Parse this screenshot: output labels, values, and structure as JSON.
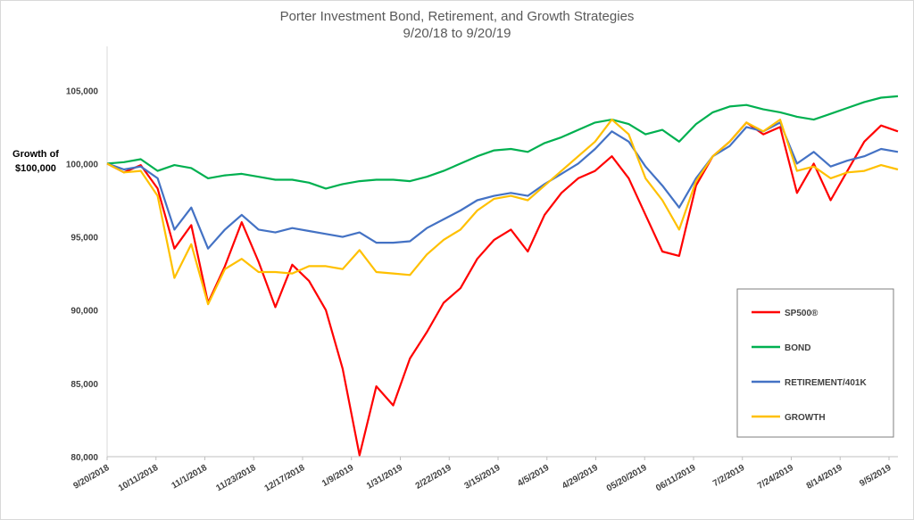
{
  "chart_data": {
    "type": "line",
    "title": "Porter Investment Bond, Retirement, and Growth Strategies",
    "subtitle": "9/20/18 to 9/20/19",
    "ylabel_line1": "Growth of",
    "ylabel_line2": "$100,000",
    "ylim": [
      80000,
      108000
    ],
    "y_ticks": [
      80000,
      85000,
      90000,
      95000,
      100000,
      105000
    ],
    "y_tick_labels": [
      "80,000",
      "85,000",
      "90,000",
      "95,000",
      "100,000",
      "105,000"
    ],
    "x_tick_labels": [
      "9/20/2018",
      "10/11/2018",
      "11/1/2018",
      "11/23/2018",
      "12/17/2018",
      "1/9/2019",
      "1/31/2019",
      "2/22/2019",
      "3/15/2019",
      "4/5/2019",
      "4/29/2019",
      "05/20/2019",
      "06/11/2019",
      "7/2/2019",
      "7/24/2019",
      "8/14/2019",
      "9/5/2019"
    ],
    "grid": false,
    "legend_position": "right",
    "series": [
      {
        "name": "SP500®",
        "color": "#ff0000",
        "values": [
          100000,
          99400,
          99900,
          98300,
          94200,
          95800,
          90500,
          93000,
          96000,
          93300,
          90200,
          93100,
          92000,
          90000,
          86000,
          80100,
          84800,
          83500,
          86700,
          88500,
          90500,
          91500,
          93500,
          94800,
          95500,
          94000,
          96500,
          98000,
          99000,
          99500,
          100500,
          99000,
          96500,
          94000,
          93700,
          98500,
          100500,
          101500,
          102800,
          102000,
          102500,
          98000,
          100000,
          97500,
          99500,
          101500,
          102600,
          102200
        ]
      },
      {
        "name": "BOND",
        "color": "#00b050",
        "values": [
          100000,
          100100,
          100300,
          99500,
          99900,
          99700,
          99000,
          99200,
          99300,
          99100,
          98900,
          98900,
          98700,
          98300,
          98600,
          98800,
          98900,
          98900,
          98800,
          99100,
          99500,
          100000,
          100500,
          100900,
          101000,
          100800,
          101400,
          101800,
          102300,
          102800,
          103000,
          102700,
          102000,
          102300,
          101500,
          102700,
          103500,
          103900,
          104000,
          103700,
          103500,
          103200,
          103000,
          103400,
          103800,
          104200,
          104500,
          104600
        ]
      },
      {
        "name": "RETIREMENT/401K",
        "color": "#4472c4",
        "values": [
          100000,
          99600,
          99800,
          99000,
          95500,
          97000,
          94200,
          95500,
          96500,
          95500,
          95300,
          95600,
          95400,
          95200,
          95000,
          95300,
          94600,
          94600,
          94700,
          95600,
          96200,
          96800,
          97500,
          97800,
          98000,
          97800,
          98600,
          99300,
          100000,
          101000,
          102200,
          101500,
          99800,
          98500,
          97000,
          99000,
          100500,
          101200,
          102500,
          102200,
          102800,
          100000,
          100800,
          99800,
          100200,
          100500,
          101000,
          100800
        ]
      },
      {
        "name": "GROWTH",
        "color": "#ffc000",
        "values": [
          100000,
          99400,
          99500,
          97800,
          92200,
          94500,
          90400,
          92800,
          93500,
          92600,
          92600,
          92500,
          93000,
          93000,
          92800,
          94100,
          92600,
          92500,
          92400,
          93800,
          94800,
          95500,
          96800,
          97600,
          97800,
          97500,
          98500,
          99500,
          100500,
          101500,
          103000,
          102000,
          99000,
          97500,
          95500,
          98800,
          100500,
          101500,
          102800,
          102200,
          103000,
          99500,
          99800,
          99000,
          99400,
          99500,
          99900,
          99600
        ]
      }
    ]
  }
}
